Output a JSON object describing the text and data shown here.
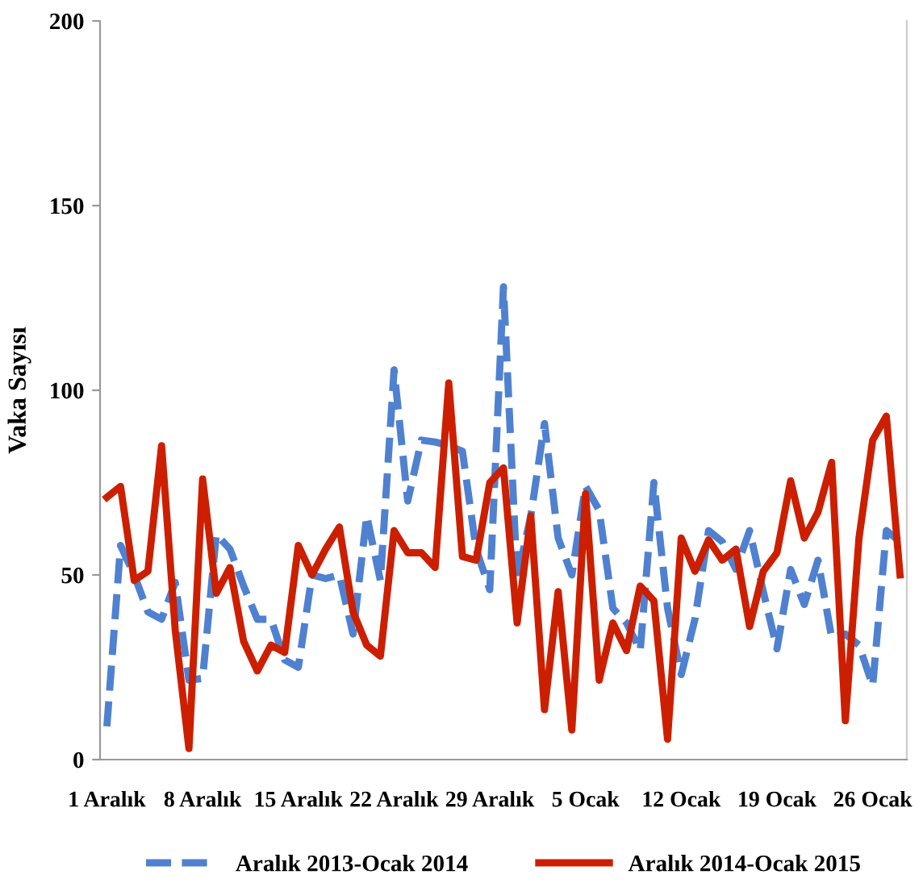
{
  "chart_data": {
    "type": "line",
    "ylabel": "Vaka Sayısı",
    "categories": [
      "1 Aralık",
      null,
      null,
      null,
      null,
      null,
      null,
      "8 Aralık",
      null,
      null,
      null,
      null,
      null,
      null,
      "15 Aralık",
      null,
      null,
      null,
      null,
      null,
      null,
      "22 Aralık",
      null,
      null,
      null,
      null,
      null,
      null,
      "29 Aralık",
      null,
      null,
      null,
      null,
      null,
      null,
      "5 Ocak",
      null,
      null,
      null,
      null,
      null,
      null,
      "12 Ocak",
      null,
      null,
      null,
      null,
      null,
      null,
      "19 Ocak",
      null,
      null,
      null,
      null,
      null,
      null,
      "26 Ocak",
      null,
      null
    ],
    "ylim": [
      0,
      200
    ],
    "yticks": [
      0,
      50,
      100,
      150,
      200
    ],
    "grid": false,
    "legend": "bottom",
    "marker": "none",
    "series": [
      {
        "name": "Aralık 2013-Ocak 2014",
        "color": "#4f81d0",
        "line_style": "dashed",
        "values": [
          9,
          58,
          50,
          40,
          38,
          48,
          21.5,
          22,
          61,
          57,
          47,
          38,
          38,
          27,
          25,
          50,
          49,
          50,
          34,
          66,
          48.5,
          105.5,
          70,
          86.5,
          86,
          85,
          83.5,
          57,
          46,
          128,
          49,
          66,
          91,
          60,
          50,
          74,
          67.5,
          41,
          37,
          29.5,
          75,
          41,
          23,
          38,
          62,
          59,
          51.5,
          62,
          45.5,
          30,
          51.5,
          42,
          54,
          33,
          34,
          31,
          20,
          62,
          59
        ]
      },
      {
        "name": "Aralık 2014-Ocak 2015",
        "color": "#cc1f00",
        "line_style": "solid",
        "values": [
          71,
          74,
          48.5,
          51,
          85,
          35,
          3,
          76,
          45,
          52,
          32,
          24,
          31,
          29,
          58,
          50,
          57,
          63,
          40,
          31,
          28,
          62,
          56,
          56,
          52,
          102,
          55,
          54,
          75,
          79,
          37,
          66,
          13.5,
          45.5,
          8,
          72,
          21.5,
          37,
          29.5,
          47,
          43,
          5.5,
          60,
          51,
          59.5,
          54,
          57,
          36,
          51,
          56,
          75.5,
          60,
          67,
          80.5,
          10.5,
          60,
          86.5,
          93,
          50
        ]
      }
    ]
  }
}
